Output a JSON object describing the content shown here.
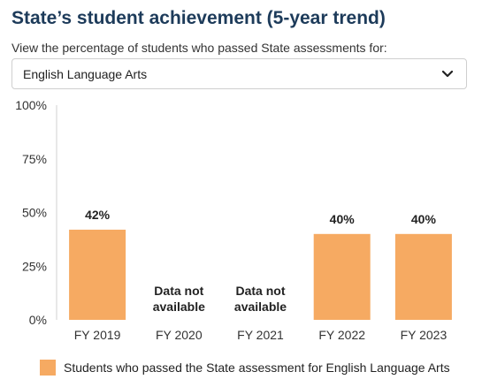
{
  "header": {
    "title": "State’s student achievement (5-year trend)",
    "subtitle": "View the percentage of students who passed State assessments for:"
  },
  "subject_select": {
    "selected": "English Language Arts",
    "icon": "chevron-down-icon"
  },
  "colors": {
    "bar": "#f6aa62",
    "title": "#1d3b5a"
  },
  "chart_data": {
    "type": "bar",
    "categories": [
      "FY 2019",
      "FY 2020",
      "FY 2021",
      "FY 2022",
      "FY 2023"
    ],
    "series": [
      {
        "name": "Students who passed the State assessment for English Language Arts",
        "values": [
          42,
          null,
          null,
          40,
          40
        ]
      }
    ],
    "data_labels": [
      "42%",
      "Data not available",
      "Data not available",
      "40%",
      "40%"
    ],
    "yticks": [
      "0%",
      "25%",
      "50%",
      "75%",
      "100%"
    ],
    "ylim": [
      0,
      100
    ],
    "grid": false,
    "legend": "bottom"
  }
}
